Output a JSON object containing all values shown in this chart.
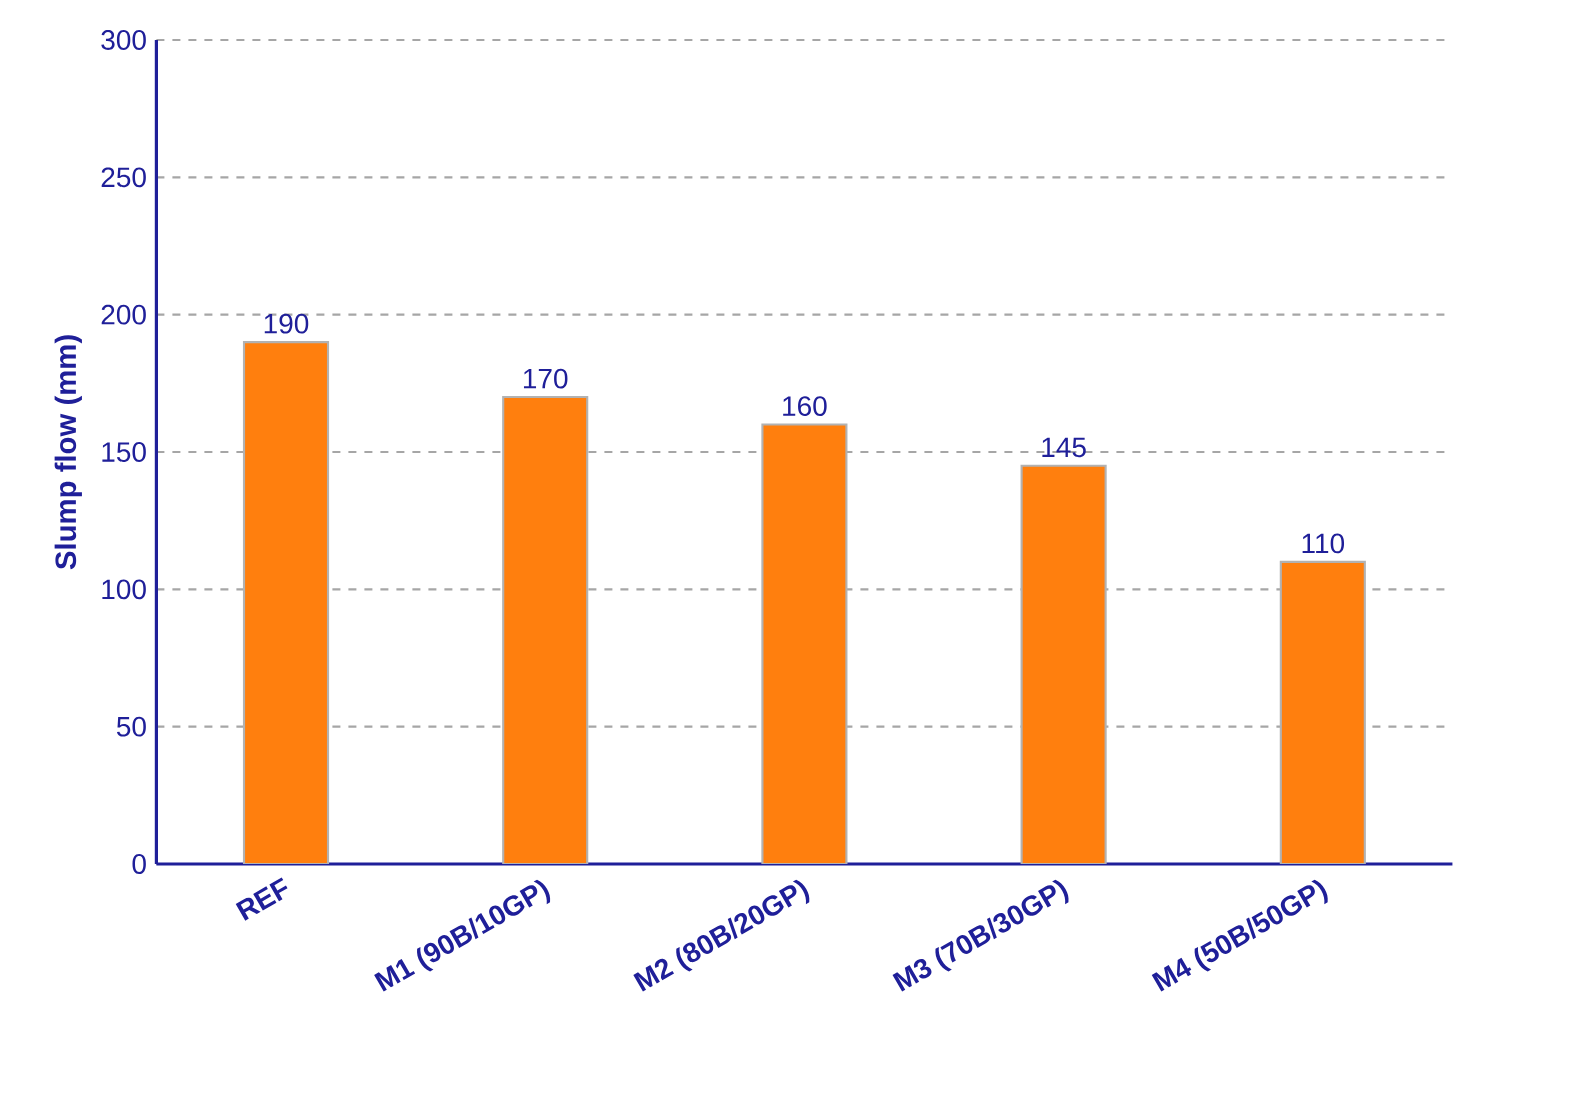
{
  "chart_data": {
    "type": "bar",
    "categories": [
      "REF",
      "M1 (90B/10GP)",
      "M2 (80B/20GP)",
      "M3 (70B/30GP)",
      "M4 (50B/50GP)"
    ],
    "values": [
      190,
      170,
      160,
      145,
      110
    ],
    "color": "#ff7f0e",
    "ylabel": "Slump flow (mm)",
    "ylim": [
      0,
      300
    ],
    "yticks": [
      0,
      50,
      100,
      150,
      200,
      250,
      300
    ],
    "grid": "y",
    "data_labels": true
  }
}
